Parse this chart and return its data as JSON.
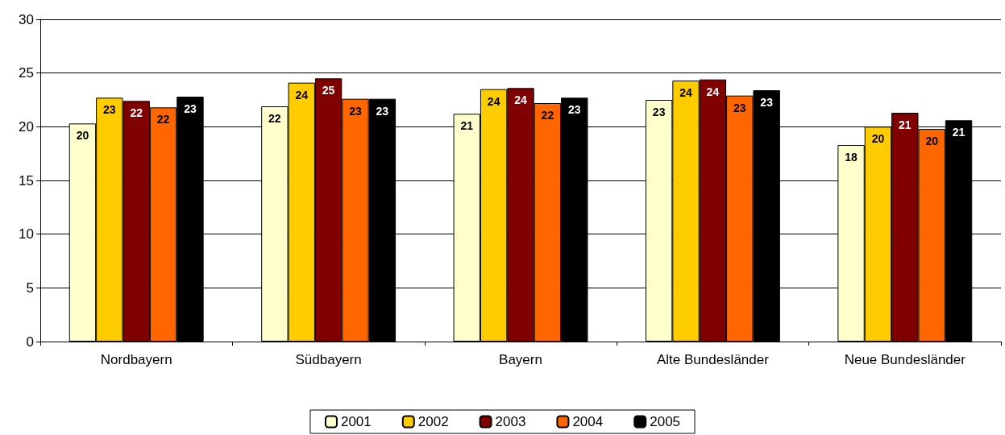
{
  "chart_data": {
    "type": "bar",
    "categories": [
      "Nordbayern",
      "Südbayern",
      "Bayern",
      "Alte Bundesländer",
      "Neue Bundesländer"
    ],
    "series": [
      {
        "name": "2001",
        "color": "#ffffcc",
        "values": [
          20.3,
          21.9,
          21.2,
          22.5,
          18.3
        ],
        "value_labels": [
          "20",
          "22",
          "21",
          "23",
          "18"
        ]
      },
      {
        "name": "2002",
        "color": "#ffcc00",
        "values": [
          22.7,
          24.1,
          23.5,
          24.3,
          20.0
        ],
        "value_labels": [
          "23",
          "24",
          "24",
          "24",
          "20"
        ]
      },
      {
        "name": "2003",
        "color": "#800000",
        "values": [
          22.4,
          24.5,
          23.6,
          24.4,
          21.3
        ],
        "value_labels": [
          "22",
          "25",
          "24",
          "24",
          "21"
        ]
      },
      {
        "name": "2004",
        "color": "#ff6600",
        "values": [
          21.8,
          22.6,
          22.2,
          22.9,
          19.8
        ],
        "value_labels": [
          "22",
          "23",
          "22",
          "23",
          "20"
        ]
      },
      {
        "name": "2005",
        "color": "#000000",
        "values": [
          22.8,
          22.6,
          22.7,
          23.4,
          20.6
        ],
        "value_labels": [
          "23",
          "23",
          "23",
          "23",
          "21"
        ]
      }
    ],
    "ylim": [
      0,
      30
    ],
    "yticks": [
      0,
      5,
      10,
      15,
      20,
      25,
      30
    ],
    "grid": "y",
    "legend": "bottom"
  }
}
